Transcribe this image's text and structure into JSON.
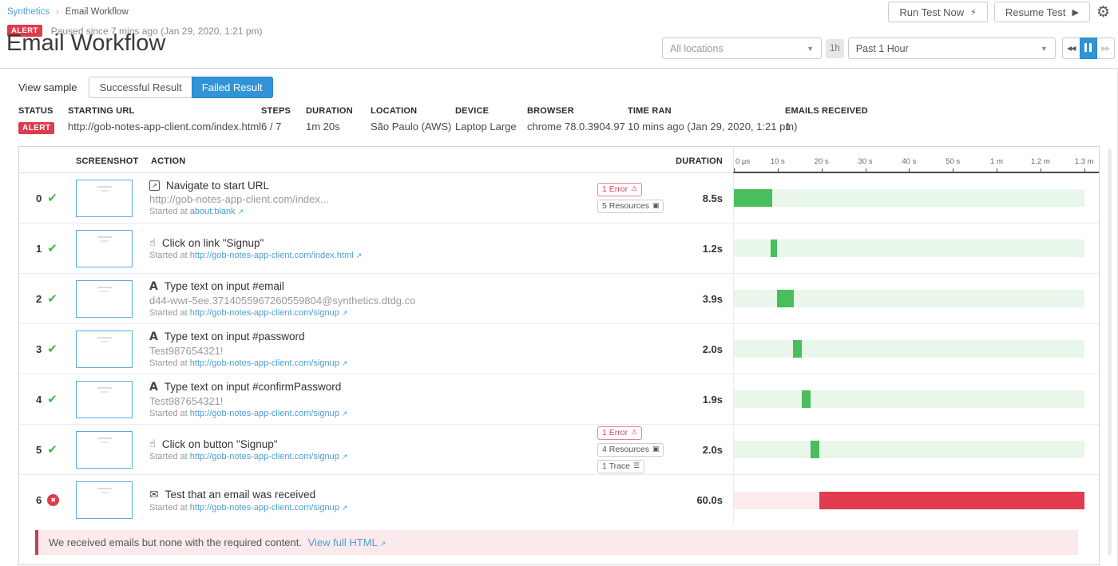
{
  "colors": {
    "accent_blue": "#3194d6",
    "alert_red": "#de3b4b",
    "success_green": "#4abd5c",
    "link_blue": "#4a9fd8"
  },
  "breadcrumb": {
    "root": "Synthetics",
    "current": "Email Workflow"
  },
  "topbar": {
    "run_test_label": "Run Test Now",
    "resume_test_label": "Resume Test"
  },
  "status_line": {
    "badge": "ALERT",
    "text": "Paused since 7 mins ago (Jan 29, 2020, 1:21 pm)"
  },
  "page_title": "Email Workflow",
  "filters": {
    "locations_placeholder": "All locations",
    "interval_badge": "1h",
    "time_range": "Past 1 Hour"
  },
  "tabs": {
    "view_sample_label": "View sample",
    "successful_label": "Successful Result",
    "failed_label": "Failed Result"
  },
  "summary": {
    "status_label": "STATUS",
    "status_value": "ALERT",
    "starting_url_label": "STARTING URL",
    "starting_url_value": "http://gob-notes-app-client.com/index.html",
    "steps_label": "STEPS",
    "steps_value": "6 / 7",
    "duration_label": "DURATION",
    "duration_value": "1m 20s",
    "location_label": "LOCATION",
    "location_value": "São Paulo (AWS)",
    "device_label": "DEVICE",
    "device_value": "Laptop Large",
    "browser_label": "BROWSER",
    "browser_value": "chrome 78.0.3904.97",
    "time_ran_label": "TIME RAN",
    "time_ran_value": "10 mins ago (Jan 29, 2020, 1:21 pm)",
    "emails_label": "EMAILS RECEIVED",
    "emails_value": "1"
  },
  "steps_table": {
    "screenshot_header": "SCREENSHOT",
    "action_header": "ACTION",
    "duration_header": "DURATION",
    "timeline_ticks": [
      "0 µs",
      "10 s",
      "20 s",
      "30 s",
      "40 s",
      "50 s",
      "1 m",
      "1.2 m",
      "1.3 m"
    ],
    "started_prefix": "Started at",
    "rows": [
      {
        "index": "0",
        "status": "pass",
        "icon": "external-link",
        "title": "Navigate to start URL",
        "subtitle": "http://gob-notes-app-client.com/index...",
        "started_link": "about:blank",
        "badges": [
          {
            "type": "error",
            "label": "1 Error"
          },
          {
            "type": "resources",
            "label": "5 Resources"
          }
        ],
        "duration": "8.5s",
        "bar": {
          "color": "green",
          "start_pct": 0,
          "width_pct": 11
        }
      },
      {
        "index": "1",
        "status": "pass",
        "icon": "cursor-click",
        "title": "Click on link \"Signup\"",
        "subtitle": "",
        "started_link": "http://gob-notes-app-client.com/index.html",
        "badges": [],
        "duration": "1.2s",
        "bar": {
          "color": "green",
          "start_pct": 10.5,
          "width_pct": 1.8
        }
      },
      {
        "index": "2",
        "status": "pass",
        "icon": "type-text",
        "title": "Type text on input #email",
        "subtitle": "d44-wwr-5ee.3714055967260559804@synthetics.dtdg.co",
        "started_link": "http://gob-notes-app-client.com/signup",
        "badges": [],
        "duration": "3.9s",
        "bar": {
          "color": "green",
          "start_pct": 12.2,
          "width_pct": 5
        }
      },
      {
        "index": "3",
        "status": "pass",
        "icon": "type-text",
        "title": "Type text on input #password",
        "subtitle": "Test987654321!",
        "started_link": "http://gob-notes-app-client.com/signup",
        "badges": [],
        "duration": "2.0s",
        "bar": {
          "color": "green",
          "start_pct": 16.9,
          "width_pct": 2.4
        }
      },
      {
        "index": "4",
        "status": "pass",
        "icon": "type-text",
        "title": "Type text on input #confirmPassword",
        "subtitle": "Test987654321!",
        "started_link": "http://gob-notes-app-client.com/signup",
        "badges": [],
        "duration": "1.9s",
        "bar": {
          "color": "green",
          "start_pct": 19.4,
          "width_pct": 2.4
        }
      },
      {
        "index": "5",
        "status": "pass",
        "icon": "cursor-click",
        "title": "Click on button \"Signup\"",
        "subtitle": "",
        "started_link": "http://gob-notes-app-client.com/signup",
        "badges": [
          {
            "type": "error",
            "label": "1 Error"
          },
          {
            "type": "resources",
            "label": "4 Resources"
          },
          {
            "type": "trace",
            "label": "1 Trace"
          }
        ],
        "duration": "2.0s",
        "bar": {
          "color": "green",
          "start_pct": 21.9,
          "width_pct": 2.4
        }
      },
      {
        "index": "6",
        "status": "fail",
        "icon": "email",
        "title": "Test that an email was received",
        "subtitle": "",
        "started_link": "http://gob-notes-app-client.com/signup",
        "badges": [],
        "duration": "60.0s",
        "bar": {
          "color": "red",
          "start_pct": 24.3,
          "width_pct": 75.7
        }
      }
    ],
    "error_message": {
      "text": "We received emails but none with the required content.",
      "link_label": "View full HTML"
    }
  }
}
